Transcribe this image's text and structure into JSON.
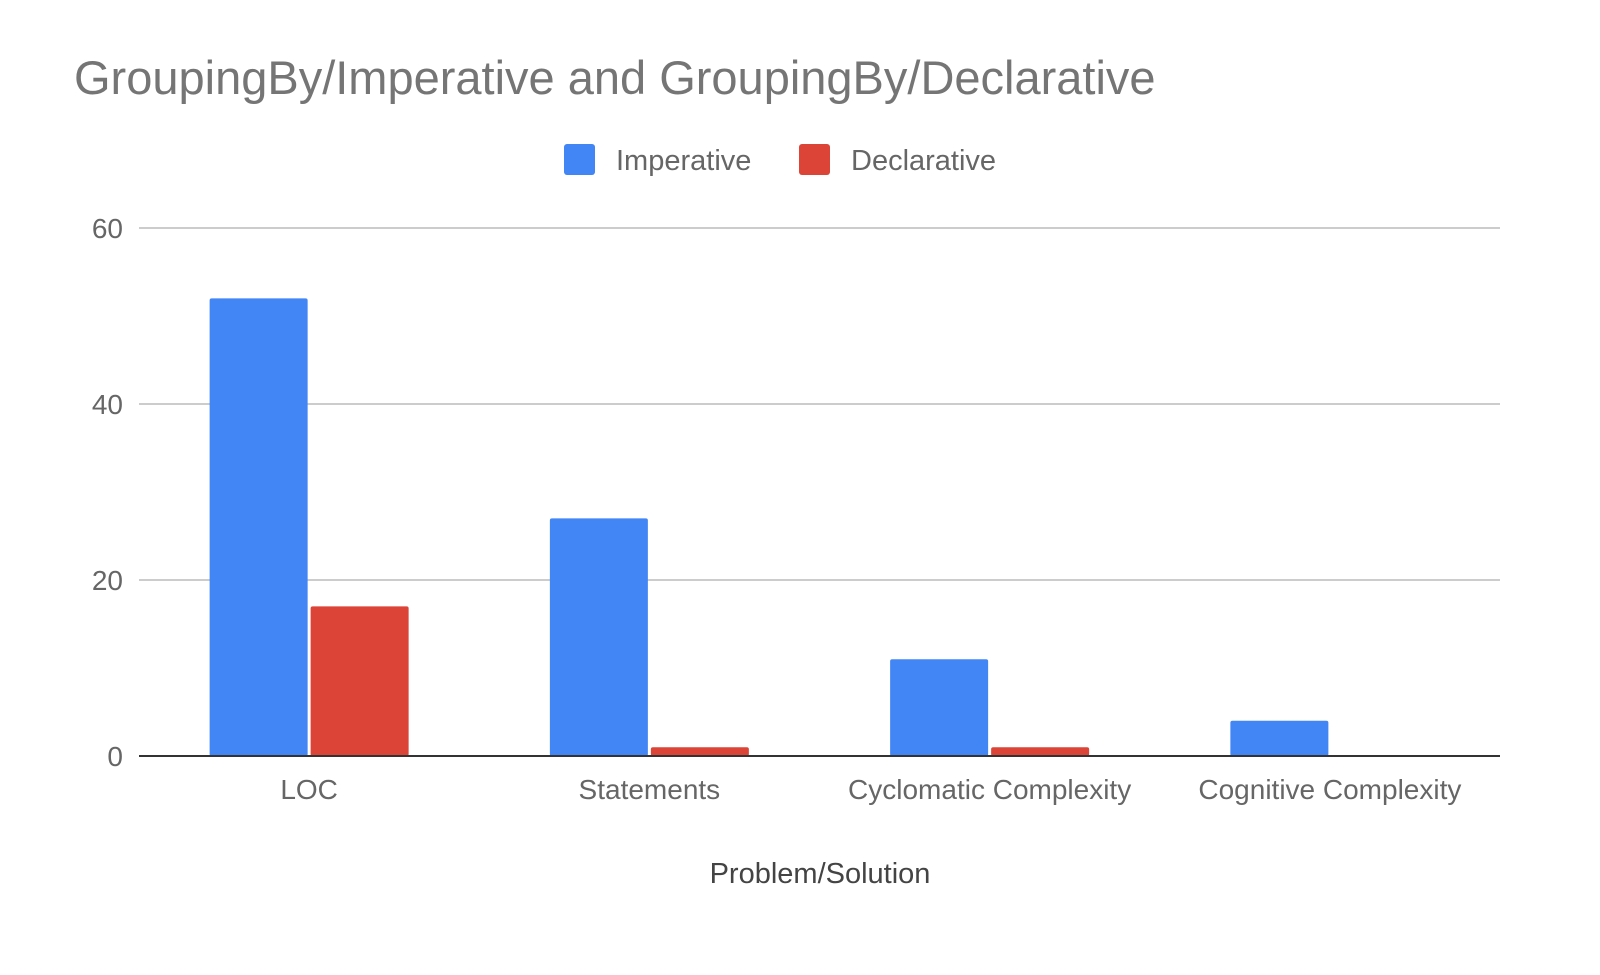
{
  "chart_data": {
    "type": "bar",
    "title": "GroupingBy/Imperative and GroupingBy/Declarative",
    "xlabel": "Problem/Solution",
    "ylabel": "",
    "categories": [
      "LOC",
      "Statements",
      "Cyclomatic Complexity",
      "Cognitive Complexity"
    ],
    "series": [
      {
        "name": "Imperative",
        "values": [
          52,
          27,
          11,
          4
        ],
        "color": "#4285f4"
      },
      {
        "name": "Declarative",
        "values": [
          17,
          1,
          1,
          0
        ],
        "color": "#db4437"
      }
    ],
    "ylim": [
      0,
      60
    ],
    "yticks": [
      0,
      20,
      40,
      60
    ],
    "grid": true,
    "legend_position": "top-center"
  }
}
